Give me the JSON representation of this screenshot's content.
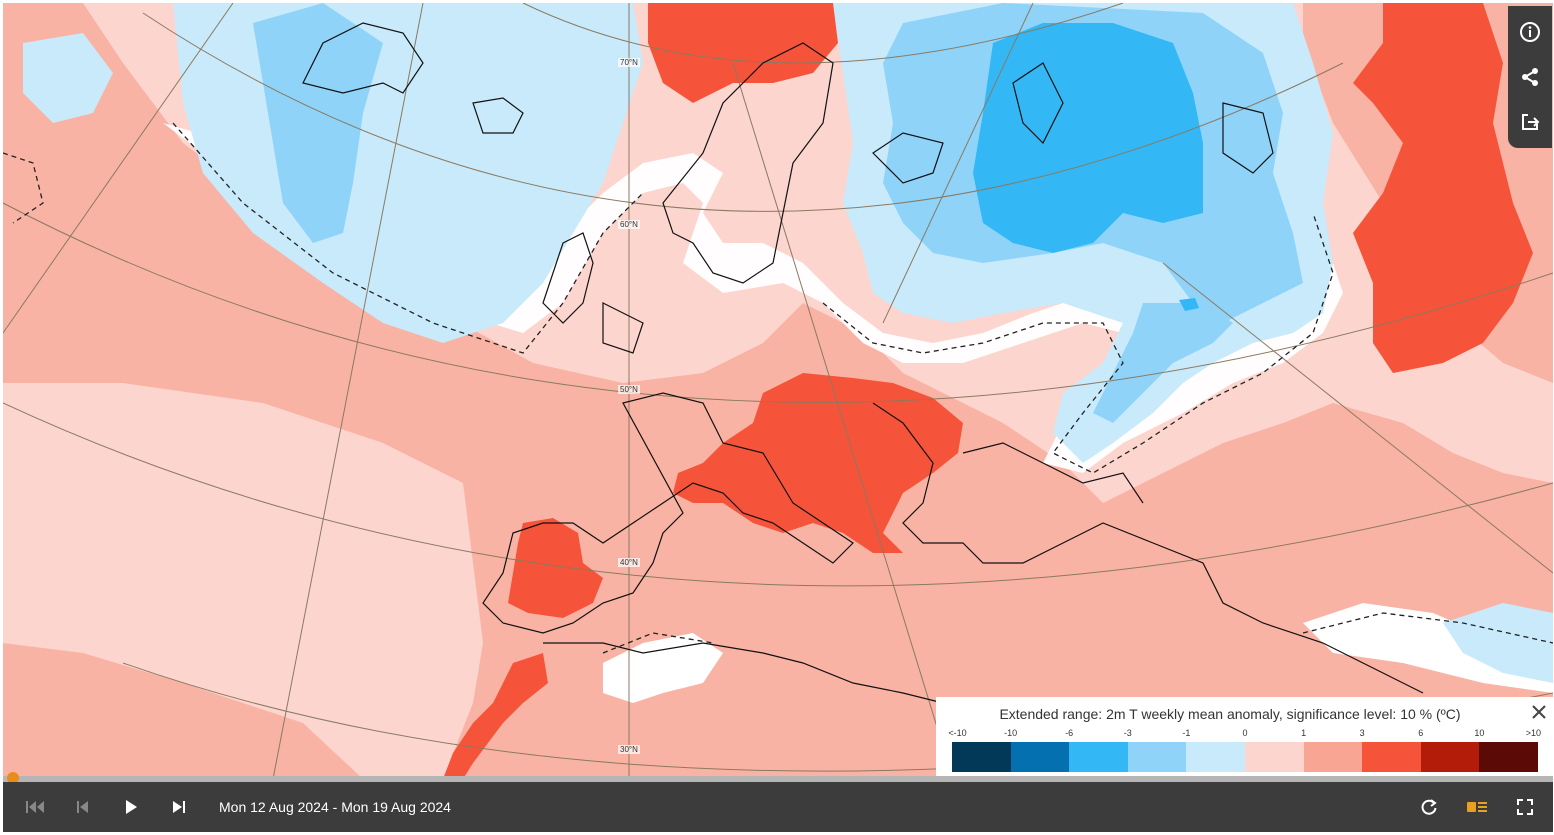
{
  "legend": {
    "title": "Extended range: 2m T weekly mean anomaly, significance level: 10 % (ºC)",
    "ticks": [
      "<-10",
      "-10",
      "-6",
      "-3",
      "-1",
      "0",
      "1",
      "3",
      "6",
      "10",
      ">10"
    ],
    "colors": [
      "#023858",
      "#0570b0",
      "#33b8f5",
      "#8fd3f9",
      "#c8eafb",
      "#fdd5cf",
      "#f9a594",
      "#f5543a",
      "#b41c0a",
      "#5c0a06"
    ]
  },
  "map": {
    "latitude_labels": [
      "70°N",
      "60°N",
      "50°N",
      "40°N",
      "30°N"
    ]
  },
  "timeline": {
    "date_range": "Mon 12 Aug 2024 - Mon 19 Aug 2024"
  },
  "icons": {
    "info": "info-icon",
    "share": "share-icon",
    "export": "export-icon",
    "skip_first": "skip-first-icon",
    "step_back": "step-back-icon",
    "play": "play-icon",
    "skip_last": "skip-last-icon",
    "refresh": "refresh-icon",
    "legend_toggle": "legend-toggle-icon",
    "fullscreen": "fullscreen-icon",
    "close": "close-icon"
  }
}
